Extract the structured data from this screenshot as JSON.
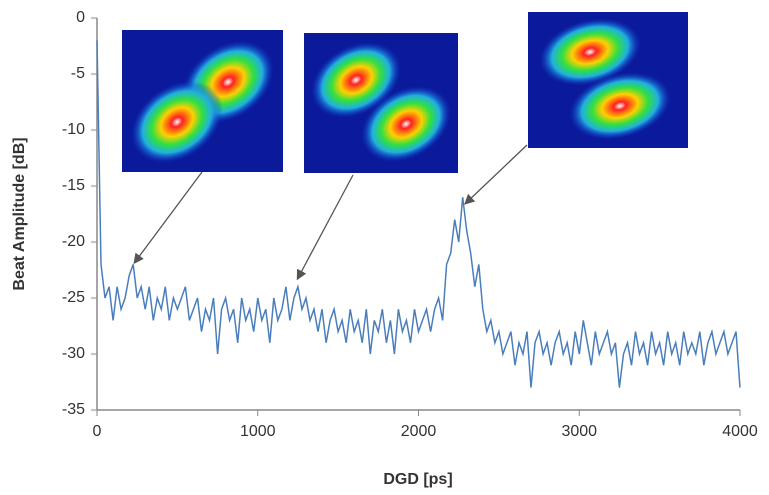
{
  "chart_data": {
    "type": "line",
    "x_label": "DGD [ps]",
    "y_label": "Beat Amplitude [dB]",
    "color": "#4a7ebb",
    "x": [
      0,
      25,
      50,
      75,
      100,
      125,
      150,
      175,
      200,
      225,
      250,
      275,
      300,
      325,
      350,
      375,
      400,
      425,
      450,
      475,
      500,
      525,
      550,
      575,
      600,
      625,
      650,
      675,
      700,
      725,
      750,
      775,
      800,
      825,
      850,
      875,
      900,
      925,
      950,
      975,
      1000,
      1025,
      1050,
      1075,
      1100,
      1125,
      1150,
      1175,
      1200,
      1225,
      1250,
      1275,
      1300,
      1325,
      1350,
      1375,
      1400,
      1425,
      1450,
      1475,
      1500,
      1525,
      1550,
      1575,
      1600,
      1625,
      1650,
      1675,
      1700,
      1725,
      1750,
      1775,
      1800,
      1825,
      1850,
      1875,
      1900,
      1925,
      1950,
      1975,
      2000,
      2025,
      2050,
      2075,
      2100,
      2125,
      2150,
      2175,
      2200,
      2225,
      2250,
      2275,
      2300,
      2325,
      2350,
      2375,
      2400,
      2425,
      2450,
      2475,
      2500,
      2525,
      2550,
      2575,
      2600,
      2625,
      2650,
      2675,
      2700,
      2725,
      2750,
      2775,
      2800,
      2825,
      2850,
      2875,
      2900,
      2925,
      2950,
      2975,
      3000,
      3025,
      3050,
      3075,
      3100,
      3125,
      3150,
      3175,
      3200,
      3225,
      3250,
      3275,
      3300,
      3325,
      3350,
      3375,
      3400,
      3425,
      3450,
      3475,
      3500,
      3525,
      3550,
      3575,
      3600,
      3625,
      3650,
      3675,
      3700,
      3725,
      3750,
      3775,
      3800,
      3825,
      3850,
      3875,
      3900,
      3925,
      3950,
      3975,
      4000
    ],
    "values": [
      -2,
      -22,
      -25,
      -24,
      -27,
      -24,
      -26,
      -25,
      -23,
      -22,
      -25,
      -24,
      -26,
      -24,
      -27,
      -25,
      -26,
      -24,
      -27,
      -25,
      -26,
      -25,
      -24,
      -27,
      -26,
      -25,
      -28,
      -26,
      -27,
      -25,
      -30,
      -26,
      -25,
      -27,
      -26,
      -29,
      -25,
      -27,
      -26,
      -28,
      -25,
      -27,
      -26,
      -29,
      -25,
      -27,
      -26,
      -24,
      -27,
      -25,
      -24,
      -26,
      -25,
      -27,
      -26,
      -28,
      -26,
      -29,
      -27,
      -26,
      -28,
      -27,
      -29,
      -26,
      -28,
      -27,
      -29,
      -26,
      -30,
      -27,
      -28,
      -26,
      -29,
      -27,
      -30,
      -26,
      -28,
      -27,
      -29,
      -26,
      -28,
      -27,
      -26,
      -28,
      -26,
      -25,
      -27,
      -22,
      -21,
      -18,
      -20,
      -16,
      -19,
      -21,
      -24,
      -22,
      -26,
      -28,
      -27,
      -29,
      -28,
      -30,
      -29,
      -28,
      -31,
      -29,
      -30,
      -28,
      -33,
      -29,
      -28,
      -30,
      -29,
      -31,
      -29,
      -28,
      -30,
      -29,
      -31,
      -28,
      -30,
      -27,
      -29,
      -31,
      -28,
      -30,
      -29,
      -28,
      -30,
      -29,
      -33,
      -30,
      -29,
      -31,
      -28,
      -30,
      -29,
      -31,
      -28,
      -30,
      -29,
      -31,
      -28,
      -30,
      -29,
      -31,
      -28,
      -30,
      -29,
      -30,
      -28,
      -31,
      -29,
      -28,
      -30,
      -29,
      -28,
      -30,
      -29,
      -28,
      -33
    ],
    "xlim": [
      0,
      4000
    ],
    "xticks": [
      0,
      1000,
      2000,
      3000,
      4000
    ],
    "ylim": [
      -35,
      0
    ],
    "yticks": [
      0,
      -5,
      -10,
      -15,
      -20,
      -25,
      -30,
      -35
    ],
    "grid": false
  }
}
